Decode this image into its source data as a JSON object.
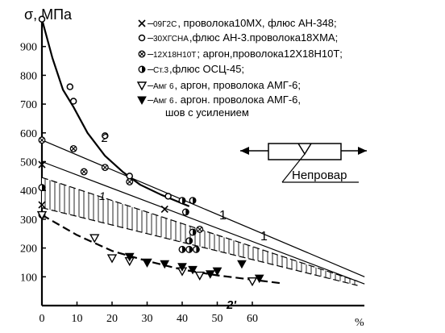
{
  "chart_data": {
    "type": "scatter",
    "ylabel": "σ, МПа",
    "xlabel": "%",
    "xlim": [
      0,
      92
    ],
    "ylim": [
      0,
      1000
    ],
    "xticks": [
      "0",
      "10",
      "20",
      "30",
      "40",
      "50",
      "60"
    ],
    "yticks": [
      "100",
      "200",
      "300",
      "400",
      "500",
      "600",
      "700",
      "800",
      "900"
    ],
    "x_unit": "%",
    "legend": [
      {
        "marker": "x",
        "small": "09Г2С",
        "text": ", проволока10МХ, флюс АН-348;"
      },
      {
        "marker": "circle-open",
        "small": "30ХГСНА",
        "text": ",флюс АН-3.проволока18ХМА;"
      },
      {
        "marker": "circle-cross",
        "small": "12Х18Н10Т",
        "text": "; аргон,проволока12Х18Н10Т;"
      },
      {
        "marker": "circle-half",
        "small": "Ст.3",
        "text": ",флюс ОСЦ-45;"
      },
      {
        "marker": "triangle-open",
        "small": "Амг 6",
        "text": ", аргон, проволока АМГ-6;"
      },
      {
        "marker": "triangle-filled",
        "small": "Амг 6",
        "text": ". аргон. проволока АМГ-6,",
        "text2": "шов с усилением"
      }
    ],
    "curve_labels": {
      "c2": "2",
      "c1_left": "1",
      "c1_mid": "1",
      "c1_right": "1",
      "c2p": "2'"
    },
    "inset_label": "Непровар",
    "series": [
      {
        "marker": "x",
        "points": [
          [
            0,
            490
          ],
          [
            0,
            350
          ],
          [
            35,
            335
          ]
        ]
      },
      {
        "marker": "circle-open",
        "points": [
          [
            0,
            995
          ],
          [
            8,
            760
          ],
          [
            9,
            710
          ],
          [
            18,
            590
          ],
          [
            25,
            450
          ],
          [
            36,
            380
          ]
        ]
      },
      {
        "marker": "circle-cross",
        "points": [
          [
            0,
            575
          ],
          [
            9,
            545
          ],
          [
            12,
            465
          ],
          [
            18,
            480
          ],
          [
            25,
            430
          ],
          [
            45,
            265
          ]
        ]
      },
      {
        "marker": "circle-half",
        "points": [
          [
            0,
            410
          ],
          [
            0,
            315
          ],
          [
            40,
            365
          ],
          [
            43,
            365
          ],
          [
            41,
            325
          ],
          [
            43,
            255
          ],
          [
            42,
            225
          ],
          [
            40,
            195
          ],
          [
            42,
            195
          ],
          [
            44,
            195
          ]
        ]
      },
      {
        "marker": "triangle-open",
        "points": [
          [
            0,
            315
          ],
          [
            15,
            235
          ],
          [
            20,
            165
          ],
          [
            25,
            155
          ],
          [
            30,
            150
          ],
          [
            40,
            120
          ],
          [
            45,
            105
          ],
          [
            60,
            85
          ]
        ]
      },
      {
        "marker": "triangle-filled",
        "points": [
          [
            25,
            170
          ],
          [
            30,
            150
          ],
          [
            35,
            145
          ],
          [
            40,
            135
          ],
          [
            43,
            125
          ],
          [
            48,
            110
          ],
          [
            50,
            120
          ],
          [
            57,
            145
          ],
          [
            62,
            95
          ]
        ]
      }
    ],
    "lines": [
      {
        "name": "2",
        "style": "solid",
        "weight": 2.2,
        "points": [
          [
            0,
            995
          ],
          [
            3,
            860
          ],
          [
            6,
            750
          ],
          [
            9,
            690
          ],
          [
            13,
            600
          ],
          [
            18,
            520
          ],
          [
            23,
            465
          ],
          [
            28,
            420
          ],
          [
            34,
            385
          ],
          [
            42,
            345
          ]
        ]
      },
      {
        "name": "1",
        "style": "solid",
        "weight": 1.2,
        "points": [
          [
            0,
            575
          ],
          [
            92,
            100
          ]
        ]
      },
      {
        "name": "1",
        "style": "solid",
        "weight": 1.2,
        "points": [
          [
            0,
            500
          ],
          [
            92,
            75
          ]
        ]
      },
      {
        "name": "2'",
        "style": "dashed",
        "weight": 2.2,
        "points": [
          [
            0,
            315
          ],
          [
            10,
            245
          ],
          [
            20,
            190
          ],
          [
            30,
            155
          ],
          [
            40,
            125
          ],
          [
            50,
            105
          ],
          [
            60,
            90
          ],
          [
            68,
            78
          ]
        ]
      }
    ],
    "band": {
      "upper": [
        [
          0,
          445
        ],
        [
          90,
          85
        ]
      ],
      "lower": [
        [
          0,
          340
        ],
        [
          90,
          70
        ]
      ]
    }
  }
}
